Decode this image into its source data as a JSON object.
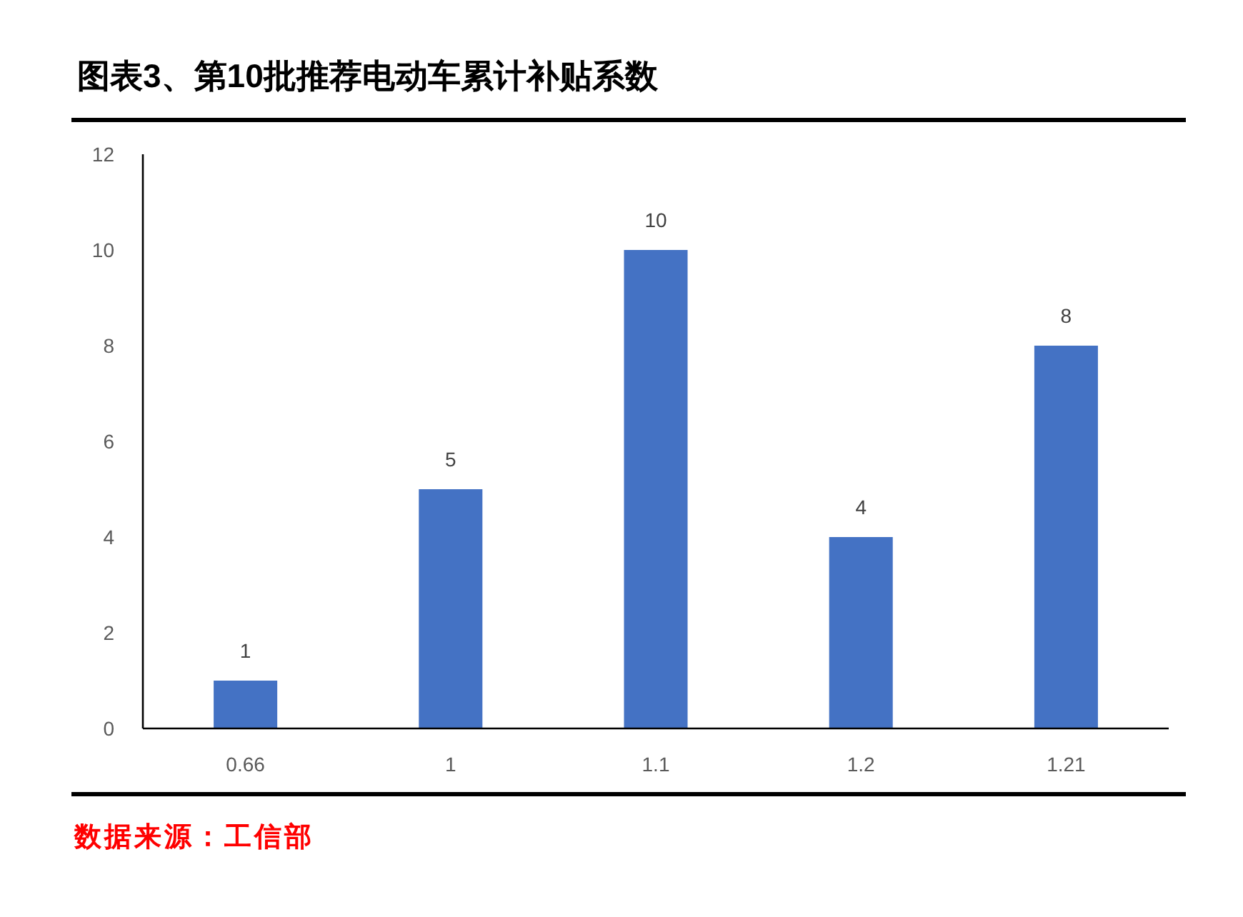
{
  "chart_data": {
    "type": "bar",
    "title": "图表3、第10批推荐电动车累计补贴系数",
    "categories": [
      "0.66",
      "1",
      "1.1",
      "1.2",
      "1.21"
    ],
    "values": [
      1,
      5,
      10,
      4,
      8
    ],
    "color": "#4472c4",
    "ylim": [
      0,
      12
    ],
    "yticks": [
      0,
      2,
      4,
      6,
      8,
      10,
      12
    ],
    "data_labels": true,
    "annotations": [
      "数据来源：工信部"
    ]
  }
}
